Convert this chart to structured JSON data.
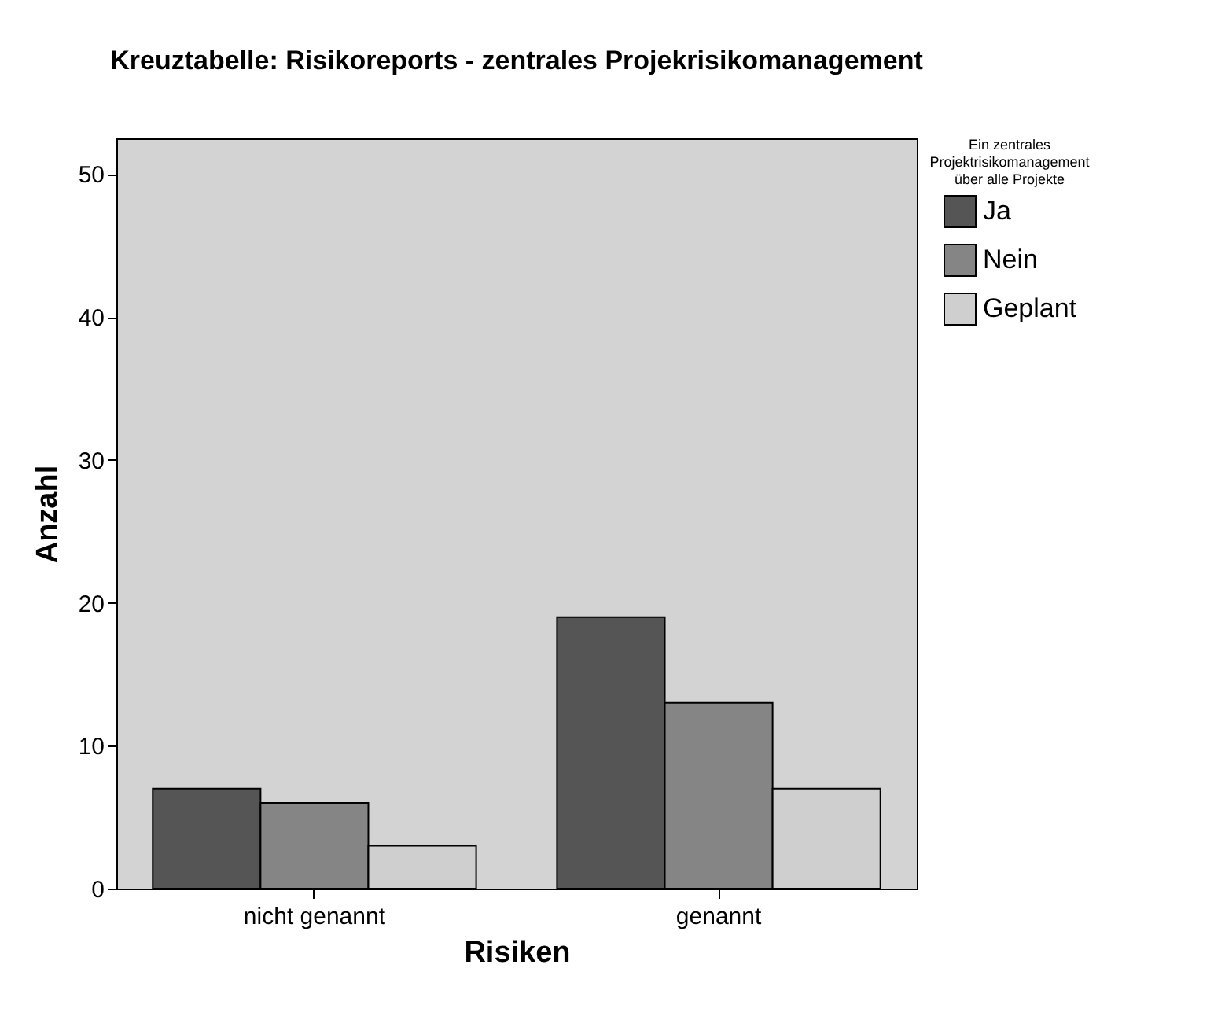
{
  "chart_data": {
    "type": "bar",
    "title": "Kreuztabelle: Risikoreports - zentrales Projekrisikomanagement",
    "xlabel": "Risiken",
    "ylabel": "Anzahl",
    "legend_title": "Ein zentrales Projektrisikomanagement über alle Projekte",
    "categories": [
      "nicht genannt",
      "genannt"
    ],
    "series": [
      {
        "name": "Ja",
        "color": "#555555",
        "values": [
          7,
          19
        ]
      },
      {
        "name": "Nein",
        "color": "#858585",
        "values": [
          6,
          13
        ]
      },
      {
        "name": "Geplant",
        "color": "#cfcfcf",
        "values": [
          3,
          7
        ]
      }
    ],
    "ylim": [
      0,
      52.5
    ],
    "yticks": [
      0,
      10,
      20,
      30,
      40,
      50
    ],
    "grid": false,
    "legend": "top right"
  }
}
